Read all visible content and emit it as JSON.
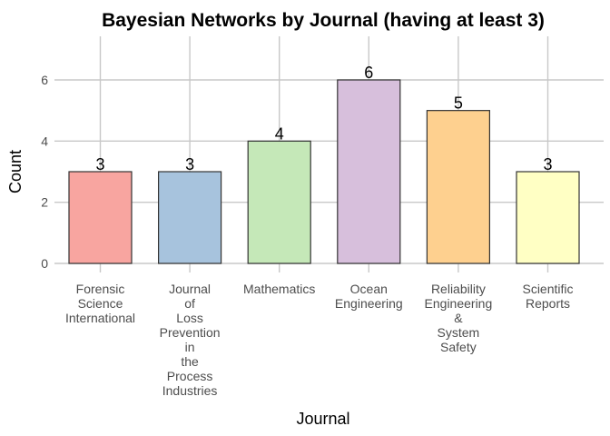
{
  "chart_data": {
    "type": "bar",
    "title": "Bayesian Networks by Journal (having at least 3)",
    "xlabel": "Journal",
    "ylabel": "Count",
    "categories": [
      [
        "Forensic",
        "Science",
        "International"
      ],
      [
        "Journal",
        "of",
        "Loss",
        "Prevention",
        "in",
        "the",
        "Process",
        "Industries"
      ],
      [
        "Mathematics"
      ],
      [
        "Ocean",
        "Engineering"
      ],
      [
        "Reliability",
        "Engineering",
        "&",
        "System",
        "Safety"
      ],
      [
        "Scientific",
        "Reports"
      ]
    ],
    "values": [
      3,
      3,
      4,
      6,
      5,
      3
    ],
    "data_labels": [
      "3",
      "3",
      "4",
      "6",
      "5",
      "3"
    ],
    "colors": [
      "#F8A5A0",
      "#A7C3DD",
      "#C5E8B8",
      "#D7BFDC",
      "#FED08F",
      "#FFFFC4"
    ],
    "yticks": [
      0,
      2,
      4,
      6
    ],
    "ylim": [
      -0.3,
      7.3
    ],
    "grid": true,
    "legend": "none"
  }
}
